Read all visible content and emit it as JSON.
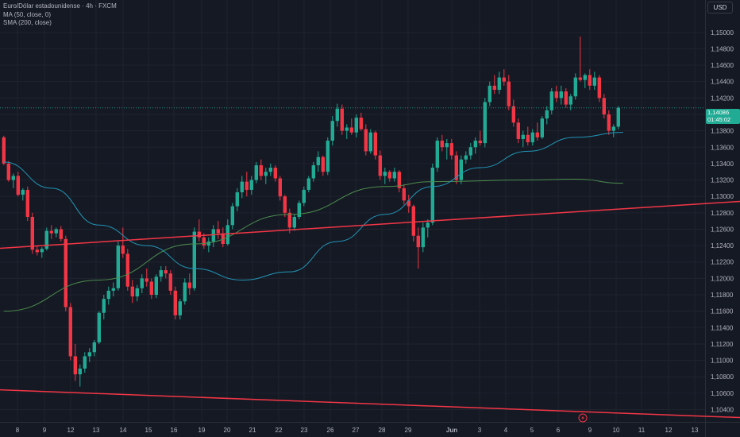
{
  "legend": {
    "symbol": "Euro/Dólar estadounidense · 4h · FXCM",
    "ma": "MA (50, close, 0)",
    "sma": "SMA (200, close)"
  },
  "currency": "USD",
  "last_price": "1,14086",
  "countdown": "01:45:02",
  "colors": {
    "background": "#151924",
    "grid": "#1f232e",
    "up": "#22ab94",
    "down": "#f23645",
    "ma50": "#2196b6",
    "sma200": "#4c8d4e",
    "trendline": "#f23645"
  },
  "chart_data": {
    "type": "candlestick",
    "title": "Euro/Dólar estadounidense · 4h · FXCM",
    "ylim": [
      1.103,
      1.152
    ],
    "y_ticks": [
      "1,15000",
      "1,14800",
      "1,14600",
      "1,14400",
      "1,14200",
      "1,14000",
      "1,13800",
      "1,13600",
      "1,13400",
      "1,13200",
      "1,13000",
      "1,12800",
      "1,12600",
      "1,12400",
      "1,12200",
      "1,12000",
      "1,11800",
      "1,11600",
      "1,11400",
      "1,11200",
      "1,11000",
      "1,10800",
      "1,10600",
      "1,10400"
    ],
    "x_ticks": [
      "8",
      "9",
      "12",
      "13",
      "14",
      "15",
      "16",
      "19",
      "20",
      "21",
      "22",
      "23",
      "26",
      "27",
      "28",
      "29",
      "Jun",
      "3",
      "4",
      "5",
      "6",
      "9",
      "10",
      "11",
      "12",
      "13"
    ],
    "candles": [
      [
        1.1372,
        1.1374,
        1.1338,
        1.134
      ],
      [
        1.134,
        1.1343,
        1.1318,
        1.132
      ],
      [
        1.132,
        1.1328,
        1.131,
        1.1325
      ],
      [
        1.1325,
        1.133,
        1.13,
        1.1302
      ],
      [
        1.1302,
        1.131,
        1.1295,
        1.1308
      ],
      [
        1.1308,
        1.1312,
        1.127,
        1.1275
      ],
      [
        1.1275,
        1.128,
        1.123,
        1.1235
      ],
      [
        1.1235,
        1.124,
        1.1228,
        1.1232
      ],
      [
        1.1232,
        1.1238,
        1.1225,
        1.1236
      ],
      [
        1.1236,
        1.1262,
        1.1234,
        1.1258
      ],
      [
        1.1258,
        1.1265,
        1.1248,
        1.1255
      ],
      [
        1.1255,
        1.1262,
        1.125,
        1.126
      ],
      [
        1.126,
        1.1264,
        1.1245,
        1.1248
      ],
      [
        1.1248,
        1.1252,
        1.116,
        1.1165
      ],
      [
        1.1165,
        1.117,
        1.11,
        1.1105
      ],
      [
        1.1105,
        1.112,
        1.1075,
        1.1083
      ],
      [
        1.1083,
        1.1095,
        1.1068,
        1.109
      ],
      [
        1.109,
        1.111,
        1.1085,
        1.1105
      ],
      [
        1.1105,
        1.1115,
        1.1098,
        1.111
      ],
      [
        1.111,
        1.1125,
        1.1105,
        1.1122
      ],
      [
        1.1122,
        1.116,
        1.112,
        1.1158
      ],
      [
        1.1158,
        1.118,
        1.115,
        1.1175
      ],
      [
        1.1175,
        1.119,
        1.1168,
        1.1185
      ],
      [
        1.1185,
        1.1195,
        1.1178,
        1.1188
      ],
      [
        1.1188,
        1.1245,
        1.1185,
        1.124
      ],
      [
        1.124,
        1.1262,
        1.1225,
        1.123
      ],
      [
        1.123,
        1.1236,
        1.1185,
        1.119
      ],
      [
        1.119,
        1.1198,
        1.117,
        1.1178
      ],
      [
        1.1178,
        1.1192,
        1.1172,
        1.1188
      ],
      [
        1.1188,
        1.1205,
        1.1182,
        1.12
      ],
      [
        1.12,
        1.1212,
        1.119,
        1.1196
      ],
      [
        1.1196,
        1.12,
        1.1175,
        1.118
      ],
      [
        1.118,
        1.1205,
        1.1176,
        1.1202
      ],
      [
        1.1202,
        1.1215,
        1.1196,
        1.121
      ],
      [
        1.121,
        1.1215,
        1.12,
        1.1206
      ],
      [
        1.1206,
        1.121,
        1.118,
        1.1185
      ],
      [
        1.1185,
        1.119,
        1.115,
        1.1155
      ],
      [
        1.1155,
        1.1175,
        1.115,
        1.1172
      ],
      [
        1.1172,
        1.12,
        1.1168,
        1.1195
      ],
      [
        1.1195,
        1.1206,
        1.118,
        1.1188
      ],
      [
        1.1188,
        1.1262,
        1.1185,
        1.1257
      ],
      [
        1.1257,
        1.1272,
        1.1245,
        1.125
      ],
      [
        1.125,
        1.1255,
        1.1236,
        1.124
      ],
      [
        1.124,
        1.125,
        1.1232,
        1.1245
      ],
      [
        1.1245,
        1.1265,
        1.1238,
        1.126
      ],
      [
        1.126,
        1.127,
        1.1248,
        1.1255
      ],
      [
        1.1255,
        1.1262,
        1.1238,
        1.1242
      ],
      [
        1.1242,
        1.1272,
        1.124,
        1.1265
      ],
      [
        1.1265,
        1.1292,
        1.126,
        1.1288
      ],
      [
        1.1288,
        1.131,
        1.1282,
        1.1305
      ],
      [
        1.1305,
        1.1325,
        1.1298,
        1.1318
      ],
      [
        1.1318,
        1.133,
        1.13,
        1.1308
      ],
      [
        1.1308,
        1.1325,
        1.1302,
        1.132
      ],
      [
        1.132,
        1.1342,
        1.1316,
        1.1338
      ],
      [
        1.1338,
        1.1345,
        1.132,
        1.1325
      ],
      [
        1.1325,
        1.1335,
        1.1315,
        1.133
      ],
      [
        1.133,
        1.134,
        1.1325,
        1.1335
      ],
      [
        1.1335,
        1.1338,
        1.1318,
        1.1322
      ],
      [
        1.1322,
        1.1325,
        1.1295,
        1.13
      ],
      [
        1.13,
        1.1302,
        1.1275,
        1.128
      ],
      [
        1.128,
        1.1285,
        1.1255,
        1.1262
      ],
      [
        1.1262,
        1.1278,
        1.1258,
        1.1275
      ],
      [
        1.1275,
        1.1295,
        1.1272,
        1.1292
      ],
      [
        1.1292,
        1.1312,
        1.1288,
        1.1308
      ],
      [
        1.1308,
        1.1325,
        1.1305,
        1.1322
      ],
      [
        1.1322,
        1.1342,
        1.1318,
        1.1338
      ],
      [
        1.1338,
        1.1355,
        1.133,
        1.1348
      ],
      [
        1.1348,
        1.135,
        1.1325,
        1.133
      ],
      [
        1.133,
        1.1372,
        1.1326,
        1.1368
      ],
      [
        1.1368,
        1.1398,
        1.1362,
        1.1392
      ],
      [
        1.1392,
        1.1413,
        1.1385,
        1.1407
      ],
      [
        1.1407,
        1.1412,
        1.1375,
        1.138
      ],
      [
        1.138,
        1.1388,
        1.137,
        1.1384
      ],
      [
        1.1384,
        1.1395,
        1.1375,
        1.1378
      ],
      [
        1.1378,
        1.14,
        1.1372,
        1.1396
      ],
      [
        1.1396,
        1.1402,
        1.138,
        1.1382
      ],
      [
        1.1382,
        1.1388,
        1.135,
        1.1355
      ],
      [
        1.1355,
        1.1382,
        1.1352,
        1.1378
      ],
      [
        1.1378,
        1.138,
        1.1345,
        1.135
      ],
      [
        1.135,
        1.1356,
        1.132,
        1.1325
      ],
      [
        1.1325,
        1.1335,
        1.1315,
        1.133
      ],
      [
        1.133,
        1.1332,
        1.1318,
        1.1322
      ],
      [
        1.1322,
        1.1335,
        1.1318,
        1.133
      ],
      [
        1.133,
        1.1332,
        1.1305,
        1.131
      ],
      [
        1.131,
        1.1315,
        1.129,
        1.1295
      ],
      [
        1.1295,
        1.1302,
        1.128,
        1.1288
      ],
      [
        1.1288,
        1.129,
        1.1245,
        1.1252
      ],
      [
        1.1252,
        1.1262,
        1.1212,
        1.1238
      ],
      [
        1.1238,
        1.1268,
        1.1232,
        1.1262
      ],
      [
        1.1262,
        1.1272,
        1.125,
        1.1268
      ],
      [
        1.1268,
        1.134,
        1.1265,
        1.1335
      ],
      [
        1.1335,
        1.1372,
        1.133,
        1.1368
      ],
      [
        1.1368,
        1.1375,
        1.1355,
        1.136
      ],
      [
        1.136,
        1.137,
        1.1345,
        1.1365
      ],
      [
        1.1365,
        1.137,
        1.1345,
        1.135
      ],
      [
        1.135,
        1.1355,
        1.1315,
        1.132
      ],
      [
        1.132,
        1.135,
        1.1315,
        1.1345
      ],
      [
        1.1345,
        1.1355,
        1.134,
        1.135
      ],
      [
        1.135,
        1.1365,
        1.1345,
        1.136
      ],
      [
        1.136,
        1.1372,
        1.1352,
        1.1368
      ],
      [
        1.1368,
        1.138,
        1.1362,
        1.1365
      ],
      [
        1.1365,
        1.142,
        1.136,
        1.1415
      ],
      [
        1.1415,
        1.144,
        1.141,
        1.1435
      ],
      [
        1.1435,
        1.1448,
        1.1425,
        1.143
      ],
      [
        1.143,
        1.1452,
        1.1425,
        1.1445
      ],
      [
        1.1445,
        1.1455,
        1.1435,
        1.144
      ],
      [
        1.144,
        1.1448,
        1.1405,
        1.141
      ],
      [
        1.141,
        1.1418,
        1.1385,
        1.139
      ],
      [
        1.139,
        1.1395,
        1.1365,
        1.137
      ],
      [
        1.137,
        1.138,
        1.136,
        1.1375
      ],
      [
        1.1375,
        1.1385,
        1.1362,
        1.1366
      ],
      [
        1.1366,
        1.1382,
        1.1362,
        1.1378
      ],
      [
        1.1378,
        1.139,
        1.1368,
        1.1372
      ],
      [
        1.1372,
        1.1398,
        1.137,
        1.1395
      ],
      [
        1.1395,
        1.141,
        1.1388,
        1.1405
      ],
      [
        1.1405,
        1.1432,
        1.14,
        1.1428
      ],
      [
        1.1428,
        1.1435,
        1.1415,
        1.142
      ],
      [
        1.142,
        1.1435,
        1.1412,
        1.1428
      ],
      [
        1.1428,
        1.1432,
        1.1408,
        1.1412
      ],
      [
        1.1412,
        1.1425,
        1.1405,
        1.1422
      ],
      [
        1.1422,
        1.145,
        1.1418,
        1.1445
      ],
      [
        1.1445,
        1.1495,
        1.144,
        1.1442
      ],
      [
        1.1442,
        1.145,
        1.1432,
        1.1448
      ],
      [
        1.1448,
        1.1455,
        1.143,
        1.1435
      ],
      [
        1.1435,
        1.1452,
        1.143,
        1.1445
      ],
      [
        1.1445,
        1.1448,
        1.1415,
        1.142
      ],
      [
        1.142,
        1.1425,
        1.1395,
        1.14
      ],
      [
        1.14,
        1.1405,
        1.1375,
        1.138
      ],
      [
        1.138,
        1.1388,
        1.1372,
        1.1385
      ],
      [
        1.1385,
        1.141,
        1.1382,
        1.1408
      ]
    ],
    "ma50": [
      [
        0,
        1.1342
      ],
      [
        10,
        1.131
      ],
      [
        20,
        1.1265
      ],
      [
        30,
        1.124
      ],
      [
        40,
        1.1212
      ],
      [
        50,
        1.1198
      ],
      [
        60,
        1.1208
      ],
      [
        70,
        1.1245
      ],
      [
        80,
        1.1278
      ],
      [
        90,
        1.1312
      ],
      [
        100,
        1.1335
      ],
      [
        110,
        1.1355
      ],
      [
        120,
        1.1372
      ],
      [
        130,
        1.1378
      ]
    ],
    "sma200": [
      [
        0,
        1.116
      ],
      [
        20,
        1.1198
      ],
      [
        40,
        1.1242
      ],
      [
        60,
        1.1278
      ],
      [
        80,
        1.1312
      ],
      [
        90,
        1.1318
      ],
      [
        110,
        1.132
      ],
      [
        120,
        1.1321
      ],
      [
        130,
        1.1316
      ]
    ],
    "trendlines": [
      {
        "from": [
          -1.5,
          1.12365
        ],
        "to": [
          158.0,
          1.12952
        ]
      },
      {
        "from": [
          -1.5,
          1.10642
        ],
        "to": [
          158.0,
          1.10295
        ]
      }
    ]
  }
}
